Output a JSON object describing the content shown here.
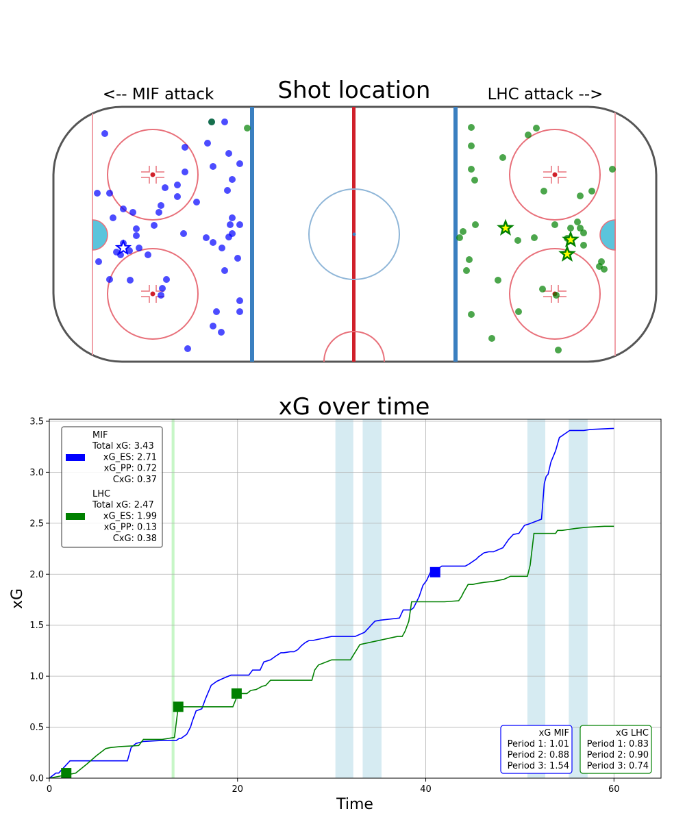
{
  "rink": {
    "title": "Shot location",
    "left_label": "<-- MIF attack",
    "right_label": "LHC attack -->"
  },
  "colors": {
    "mif": "#0000ff",
    "lhc": "#008000",
    "star_fill": "#ffff00",
    "pp_band": "#add8e6",
    "pk_band": "#90ee90",
    "rink_red": "#e8707a",
    "blue_line": "#3a7fc0"
  },
  "shots": {
    "mif": [
      [
        153,
        195
      ],
      [
        309,
        178
      ],
      [
        328,
        178
      ],
      [
        270,
        215
      ],
      [
        303,
        209
      ],
      [
        334,
        224
      ],
      [
        311,
        243
      ],
      [
        350,
        239
      ],
      [
        270,
        251
      ],
      [
        259,
        270
      ],
      [
        241,
        274
      ],
      [
        259,
        287
      ],
      [
        339,
        262
      ],
      [
        332,
        278
      ],
      [
        142,
        282
      ],
      [
        160,
        282
      ],
      [
        287,
        295
      ],
      [
        235,
        300
      ],
      [
        180,
        305
      ],
      [
        194,
        310
      ],
      [
        232,
        310
      ],
      [
        165,
        318
      ],
      [
        225,
        329
      ],
      [
        339,
        318
      ],
      [
        336,
        328
      ],
      [
        350,
        328
      ],
      [
        199,
        334
      ],
      [
        268,
        341
      ],
      [
        339,
        341
      ],
      [
        199,
        344
      ],
      [
        301,
        347
      ],
      [
        311,
        354
      ],
      [
        334,
        346
      ],
      [
        324,
        362
      ],
      [
        180,
        355
      ],
      [
        170,
        368
      ],
      [
        176,
        372
      ],
      [
        189,
        366
      ],
      [
        203,
        362
      ],
      [
        216,
        372
      ],
      [
        347,
        377
      ],
      [
        144,
        382
      ],
      [
        328,
        395
      ],
      [
        160,
        408
      ],
      [
        190,
        409
      ],
      [
        243,
        408
      ],
      [
        237,
        421
      ],
      [
        235,
        431
      ],
      [
        350,
        439
      ],
      [
        316,
        455
      ],
      [
        350,
        455
      ],
      [
        311,
        476
      ],
      [
        323,
        485
      ],
      [
        274,
        509
      ]
    ],
    "lhc": [
      [
        309,
        178
      ],
      [
        361,
        187
      ],
      [
        688,
        186
      ],
      [
        783,
        187
      ],
      [
        771,
        197
      ],
      [
        688,
        213
      ],
      [
        734,
        230
      ],
      [
        894,
        247
      ],
      [
        688,
        247
      ],
      [
        693,
        263
      ],
      [
        794,
        279
      ],
      [
        864,
        279
      ],
      [
        847,
        286
      ],
      [
        694,
        328
      ],
      [
        676,
        338
      ],
      [
        671,
        347
      ],
      [
        756,
        351
      ],
      [
        780,
        347
      ],
      [
        810,
        328
      ],
      [
        833,
        333
      ],
      [
        843,
        324
      ],
      [
        847,
        333
      ],
      [
        852,
        340
      ],
      [
        852,
        358
      ],
      [
        828,
        348
      ],
      [
        685,
        379
      ],
      [
        878,
        382
      ],
      [
        875,
        389
      ],
      [
        882,
        393
      ],
      [
        681,
        395
      ],
      [
        727,
        409
      ],
      [
        792,
        422
      ],
      [
        812,
        431
      ],
      [
        757,
        455
      ],
      [
        688,
        459
      ],
      [
        718,
        494
      ],
      [
        815,
        511
      ]
    ]
  },
  "goals": {
    "mif": [
      [
        180,
        362
      ]
    ],
    "lhc": [
      [
        738,
        333
      ],
      [
        833,
        350
      ],
      [
        828,
        371
      ]
    ]
  },
  "chart_data": {
    "type": "line",
    "title": "xG over time",
    "xlabel": "Time",
    "ylabel": "xG",
    "xlim": [
      0,
      65
    ],
    "ylim": [
      0,
      3.52
    ],
    "xticks": [
      0,
      20,
      40,
      60
    ],
    "yticks": [
      0.0,
      0.5,
      1.0,
      1.5,
      2.0,
      2.5,
      3.0,
      3.5
    ],
    "ytick_labels": [
      "0.0",
      "0.5",
      "1.0",
      "1.5",
      "2.0",
      "2.5",
      "3.0",
      "3.5"
    ],
    "grid": true,
    "legend_position": "top-left",
    "pp_bands": [
      [
        30.4,
        32.3
      ],
      [
        33.3,
        35.3
      ],
      [
        50.8,
        52.7
      ],
      [
        55.2,
        57.2
      ]
    ],
    "pk_bands": [
      [
        13.0,
        13.3
      ]
    ],
    "series": [
      {
        "name": "MIF",
        "color": "#0000ff",
        "x": [
          0,
          0.7,
          1.0,
          1.5,
          2.2,
          8.3,
          8.7,
          9.2,
          9.6,
          10.0,
          12.0,
          13.5,
          13.8,
          14.0,
          14.6,
          15.0,
          15.2,
          15.6,
          16.2,
          16.6,
          17.2,
          17.8,
          18.5,
          19.3,
          20.2,
          21.2,
          21.6,
          22.4,
          22.8,
          23.5,
          24.1,
          24.6,
          24.9,
          25.6,
          26.0,
          26.4,
          26.8,
          27.2,
          27.6,
          28.0,
          28.5,
          29.0,
          30.0,
          31.0,
          32.5,
          33.5,
          34.0,
          34.3,
          34.6,
          35.2,
          37.2,
          37.6,
          37.9,
          38.4,
          38.7,
          39.3,
          39.7,
          40.1,
          40.5,
          41.0,
          41.4,
          41.7,
          42.0,
          42.4,
          44.2,
          44.6,
          45.4,
          45.6,
          46.2,
          46.7,
          47.2,
          48.2,
          48.8,
          49.3,
          49.9,
          50.5,
          50.9,
          52.3,
          52.6,
          52.8,
          53.0,
          53.3,
          53.8,
          54.2,
          55.3,
          56.8,
          57.5,
          60.0
        ],
        "y": [
          0,
          0.05,
          0.05,
          0.1,
          0.17,
          0.17,
          0.3,
          0.34,
          0.35,
          0.36,
          0.37,
          0.37,
          0.39,
          0.39,
          0.43,
          0.5,
          0.56,
          0.66,
          0.68,
          0.78,
          0.91,
          0.95,
          0.98,
          1.01,
          1.01,
          1.01,
          1.06,
          1.06,
          1.14,
          1.16,
          1.2,
          1.23,
          1.23,
          1.24,
          1.24,
          1.26,
          1.3,
          1.33,
          1.35,
          1.35,
          1.36,
          1.37,
          1.39,
          1.39,
          1.39,
          1.43,
          1.48,
          1.51,
          1.54,
          1.55,
          1.57,
          1.65,
          1.65,
          1.65,
          1.67,
          1.78,
          1.89,
          1.94,
          2.02,
          2.02,
          2.06,
          2.08,
          2.08,
          2.08,
          2.08,
          2.1,
          2.15,
          2.17,
          2.21,
          2.22,
          2.22,
          2.26,
          2.34,
          2.39,
          2.4,
          2.48,
          2.49,
          2.54,
          2.89,
          2.96,
          2.98,
          3.1,
          3.21,
          3.34,
          3.41,
          3.41,
          3.42,
          3.43
        ]
      },
      {
        "name": "LHC",
        "color": "#008000",
        "x": [
          0,
          1.7,
          2.8,
          4.0,
          5.0,
          6.0,
          6.5,
          7.5,
          9.5,
          10.0,
          12.0,
          13.3,
          13.7,
          19.5,
          19.9,
          20.1,
          21.0,
          21.4,
          22.0,
          22.6,
          23.0,
          23.5,
          27.9,
          28.2,
          28.6,
          30.0,
          31.0,
          32.0,
          33.0,
          37.0,
          37.5,
          37.8,
          38.2,
          38.5,
          42.0,
          43.5,
          43.8,
          44.0,
          44.5,
          45.0,
          45.5,
          46.2,
          47.2,
          48.3,
          49.0,
          50.8,
          51.1,
          51.5,
          53.8,
          54.0,
          54.5,
          56.0,
          57.0,
          59.0,
          60.0
        ],
        "y": [
          0,
          0.03,
          0.05,
          0.14,
          0.22,
          0.29,
          0.3,
          0.31,
          0.32,
          0.38,
          0.38,
          0.4,
          0.7,
          0.7,
          0.79,
          0.83,
          0.83,
          0.86,
          0.87,
          0.9,
          0.91,
          0.96,
          0.96,
          1.06,
          1.11,
          1.16,
          1.16,
          1.16,
          1.31,
          1.39,
          1.39,
          1.44,
          1.54,
          1.73,
          1.73,
          1.74,
          1.78,
          1.82,
          1.9,
          1.9,
          1.91,
          1.92,
          1.93,
          1.95,
          1.98,
          1.98,
          2.09,
          2.4,
          2.4,
          2.43,
          2.43,
          2.45,
          2.46,
          2.47,
          2.47
        ]
      }
    ],
    "goals": [
      {
        "team": "MIF",
        "x": 41.0,
        "y": 2.02
      },
      {
        "team": "LHC",
        "x": 1.8,
        "y": 0.05
      },
      {
        "team": "LHC",
        "x": 13.7,
        "y": 0.7
      },
      {
        "team": "LHC",
        "x": 19.9,
        "y": 0.83
      }
    ],
    "legend": [
      {
        "name": "MIF",
        "lines": [
          "MIF",
          "Total xG: 3.43",
          "xG_ES: 2.71",
          "xG_PP: 0.72",
          "CxG: 0.37"
        ]
      },
      {
        "name": "LHC",
        "lines": [
          "LHC",
          "Total xG: 2.47",
          "xG_ES: 1.99",
          "xG_PP: 0.13",
          "CxG: 0.38"
        ]
      }
    ],
    "period_boxes": [
      {
        "team": "MIF",
        "lines": [
          "xG MIF",
          "Period 1: 1.01",
          "Period 2: 0.88",
          "Period 3: 1.54"
        ]
      },
      {
        "team": "LHC",
        "lines": [
          "xG LHC",
          "Period 1: 0.83",
          "Period 2: 0.90",
          "Period 3: 0.74"
        ]
      }
    ]
  }
}
